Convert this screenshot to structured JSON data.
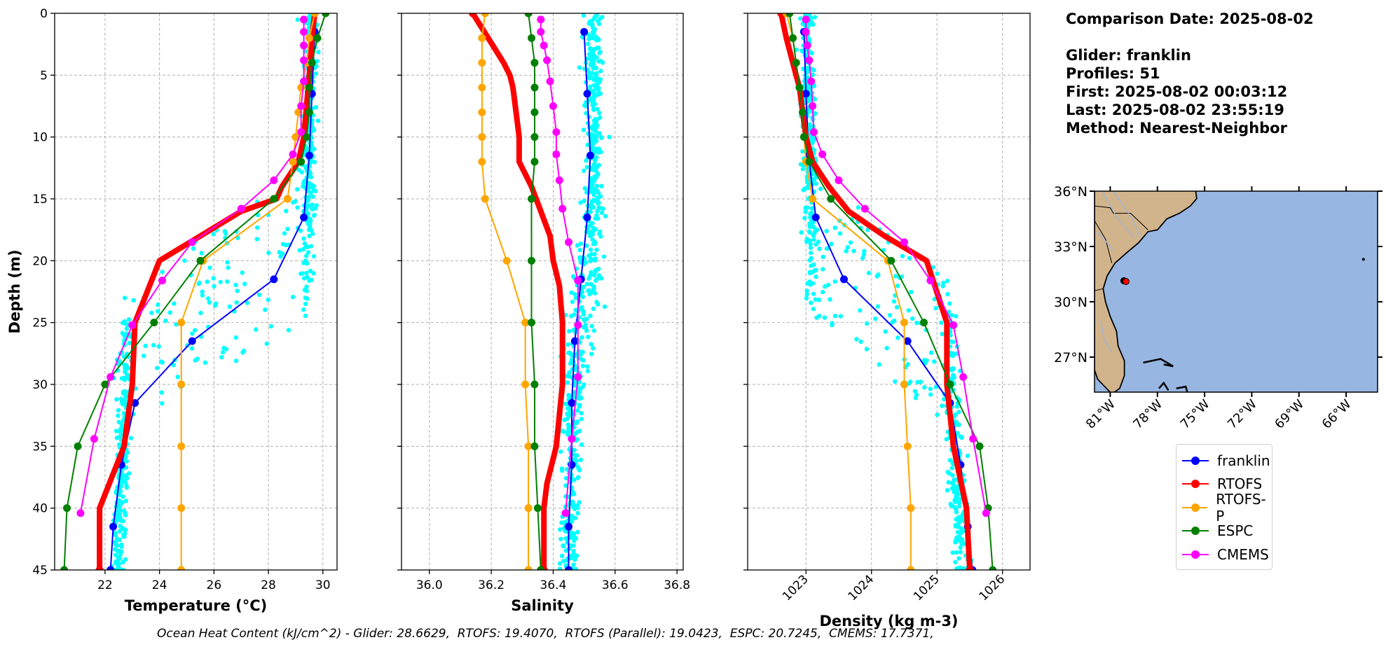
{
  "info": {
    "comparison_date": "Comparison Date: 2025-08-02",
    "glider": "Glider: franklin",
    "profiles": "Profiles: 51",
    "first": "First: 2025-08-02 00:03:12",
    "last": "Last: 2025-08-02 23:55:19",
    "method": "Method: Nearest-Neighbor"
  },
  "caption": "Ocean Heat Content (kJ/cm^2) - Glider: 28.6629,  RTOFS: 19.4070,  RTOFS (Parallel): 19.0423,  ESPC: 20.7245,  CMEMS: 17.7371,",
  "legend": [
    {
      "name": "franklin",
      "color": "#0000ff"
    },
    {
      "name": "RTOFS",
      "color": "#ff0000"
    },
    {
      "name": "RTOFS-P",
      "color": "#ffa500"
    },
    {
      "name": "ESPC",
      "color": "#008000"
    },
    {
      "name": "CMEMS",
      "color": "#ff00ff"
    }
  ],
  "scatter_color": "#00ffff",
  "chart_data": [
    {
      "type": "line",
      "xlabel": "Temperature (°C)",
      "ylabel": "Depth (m)",
      "xlim": [
        20.15,
        30.52
      ],
      "ylim": [
        45,
        0
      ],
      "xticks": [
        "22",
        "24",
        "26",
        "28",
        "30"
      ],
      "yticks": [
        "0",
        "5",
        "10",
        "15",
        "20",
        "25",
        "30",
        "35",
        "40",
        "45"
      ],
      "grid": true,
      "series": [
        {
          "name": "franklin",
          "depth": [
            1.5,
            6.5,
            11.5,
            16.5,
            21.5,
            26.5,
            31.5,
            36.5,
            41.5,
            45
          ],
          "values": [
            29.7,
            29.6,
            29.5,
            29.3,
            28.2,
            25.2,
            23.1,
            22.6,
            22.3,
            22.2
          ]
        },
        {
          "name": "RTOFS",
          "depth": [
            0,
            2,
            5,
            10,
            12,
            14,
            15,
            16,
            18,
            20,
            25,
            30,
            35,
            40,
            45
          ],
          "values": [
            29.7,
            29.6,
            29.5,
            29.3,
            29.1,
            28.5,
            28.3,
            27.0,
            25.5,
            24.0,
            23.1,
            23.0,
            22.7,
            21.8,
            21.8
          ]
        },
        {
          "name": "RTOFS-P",
          "depth": [
            0,
            2,
            4,
            6,
            8,
            10,
            12,
            15,
            20,
            25,
            30,
            35,
            40,
            45
          ],
          "values": [
            29.7,
            29.5,
            29.4,
            29.2,
            29.1,
            29.0,
            28.9,
            28.7,
            25.6,
            24.8,
            24.8,
            24.8,
            24.8,
            24.8
          ]
        },
        {
          "name": "ESPC",
          "depth": [
            0,
            2,
            4,
            6,
            8,
            10,
            12,
            15,
            20,
            25,
            30,
            35,
            40,
            45
          ],
          "values": [
            30.1,
            29.8,
            29.6,
            29.5,
            29.5,
            29.4,
            29.2,
            28.2,
            25.5,
            23.8,
            22.0,
            21.0,
            20.6,
            20.5
          ]
        },
        {
          "name": "CMEMS",
          "depth": [
            0.5,
            1.5,
            2.6,
            3.8,
            5.5,
            7.5,
            9.6,
            11.4,
            13.5,
            15.8,
            18.5,
            21.6,
            25.2,
            29.4,
            34.4,
            40.4
          ],
          "values": [
            29.3,
            29.3,
            29.3,
            29.3,
            29.3,
            29.2,
            29.2,
            28.9,
            28.2,
            27.0,
            25.2,
            24.1,
            23.0,
            22.2,
            21.6,
            21.1
          ]
        }
      ]
    },
    {
      "type": "line",
      "xlabel": "Salinity",
      "xlim": [
        35.91,
        36.82
      ],
      "ylim": [
        45,
        0
      ],
      "xticks": [
        "36.0",
        "36.2",
        "36.4",
        "36.6",
        "36.8"
      ],
      "grid": true,
      "series": [
        {
          "name": "franklin",
          "depth": [
            1.5,
            6.5,
            11.5,
            16.5,
            21.5,
            26.5,
            31.5,
            36.5,
            41.5,
            45
          ],
          "values": [
            36.5,
            36.51,
            36.52,
            36.51,
            36.49,
            36.47,
            36.46,
            36.46,
            36.45,
            36.45
          ]
        },
        {
          "name": "RTOFS",
          "depth": [
            0,
            2,
            4,
            5,
            6,
            8,
            10,
            12,
            14,
            16,
            18,
            20,
            22,
            25,
            30,
            35,
            38,
            40,
            45
          ],
          "values": [
            36.14,
            36.19,
            36.24,
            36.26,
            36.27,
            36.28,
            36.29,
            36.29,
            36.33,
            36.36,
            36.39,
            36.4,
            36.42,
            36.43,
            36.43,
            36.41,
            36.38,
            36.37,
            36.37
          ]
        },
        {
          "name": "RTOFS-P",
          "depth": [
            0,
            2,
            4,
            6,
            8,
            10,
            12,
            15,
            20,
            25,
            30,
            35,
            40,
            45
          ],
          "values": [
            36.18,
            36.17,
            36.17,
            36.17,
            36.17,
            36.17,
            36.17,
            36.18,
            36.25,
            36.31,
            36.31,
            36.32,
            36.32,
            36.32
          ]
        },
        {
          "name": "ESPC",
          "depth": [
            0,
            2,
            4,
            6,
            8,
            10,
            12,
            15,
            20,
            25,
            30,
            35,
            40,
            45
          ],
          "values": [
            36.32,
            36.33,
            36.34,
            36.34,
            36.34,
            36.34,
            36.34,
            36.33,
            36.33,
            36.33,
            36.34,
            36.34,
            36.35,
            36.36
          ]
        },
        {
          "name": "CMEMS",
          "depth": [
            0.5,
            1.5,
            2.6,
            3.8,
            5.5,
            7.5,
            9.6,
            11.4,
            13.5,
            15.8,
            18.5,
            21.6,
            25.2,
            29.4,
            34.4,
            40.4
          ],
          "values": [
            36.36,
            36.36,
            36.37,
            36.38,
            36.39,
            36.4,
            36.41,
            36.41,
            36.42,
            36.43,
            36.45,
            36.48,
            36.48,
            36.48,
            36.46,
            36.44
          ]
        }
      ]
    },
    {
      "type": "line",
      "xlabel": "Density (kg m-3)",
      "xlim": [
        1022.11,
        1026.42
      ],
      "ylim": [
        45,
        0
      ],
      "xticks": [
        "1023",
        "1024",
        "1025",
        "1026"
      ],
      "grid": true,
      "series": [
        {
          "name": "franklin",
          "depth": [
            1.5,
            6.5,
            11.5,
            16.5,
            21.5,
            26.5,
            31.5,
            36.5,
            41.5,
            45
          ],
          "values": [
            1022.97,
            1023.0,
            1023.04,
            1023.15,
            1023.58,
            1024.55,
            1025.2,
            1025.36,
            1025.47,
            1025.54
          ]
        },
        {
          "name": "RTOFS",
          "depth": [
            0,
            2,
            4,
            6,
            8,
            10,
            12,
            14,
            16,
            18,
            20,
            25,
            30,
            35,
            40,
            45
          ],
          "values": [
            1022.62,
            1022.7,
            1022.8,
            1022.9,
            1022.95,
            1023.0,
            1023.1,
            1023.35,
            1023.65,
            1024.2,
            1024.84,
            1025.15,
            1025.15,
            1025.25,
            1025.45,
            1025.5
          ]
        },
        {
          "name": "RTOFS-P",
          "depth": [
            0,
            2,
            4,
            6,
            8,
            10,
            12,
            15,
            20,
            25,
            30,
            35,
            40,
            45
          ],
          "values": [
            1022.7,
            1022.8,
            1022.85,
            1022.9,
            1022.95,
            1022.97,
            1023.0,
            1023.1,
            1024.25,
            1024.5,
            1024.5,
            1024.55,
            1024.6,
            1024.6
          ]
        },
        {
          "name": "ESPC",
          "depth": [
            0,
            2,
            4,
            6,
            8,
            10,
            12,
            15,
            20,
            25,
            30,
            35,
            40,
            45
          ],
          "values": [
            1022.75,
            1022.8,
            1022.85,
            1022.9,
            1022.95,
            1022.97,
            1023.05,
            1023.38,
            1024.3,
            1024.8,
            1025.2,
            1025.65,
            1025.78,
            1025.85
          ]
        },
        {
          "name": "CMEMS",
          "depth": [
            0.5,
            1.5,
            2.6,
            3.8,
            5.5,
            7.5,
            9.6,
            11.4,
            13.5,
            15.8,
            18.5,
            21.6,
            25.2,
            29.4,
            34.4,
            40.4
          ],
          "values": [
            1023.0,
            1023.0,
            1023.02,
            1023.05,
            1023.08,
            1023.1,
            1023.12,
            1023.25,
            1023.5,
            1023.9,
            1024.5,
            1024.9,
            1025.25,
            1025.4,
            1025.55,
            1025.75
          ]
        }
      ]
    }
  ],
  "map": {
    "lon_range": [
      -82,
      -64
    ],
    "lat_range": [
      25.1,
      36
    ],
    "lon_ticks": [
      "81°W",
      "78°W",
      "75°W",
      "72°W",
      "69°W",
      "66°W"
    ],
    "lat_ticks": [
      "27°N",
      "30°N",
      "33°N",
      "36°N"
    ],
    "land_color": "#d2b48c",
    "ocean_color": "#97b6e1",
    "glider_position": {
      "lon": -80.0,
      "lat": 31.1,
      "color": "#ff0000"
    }
  }
}
